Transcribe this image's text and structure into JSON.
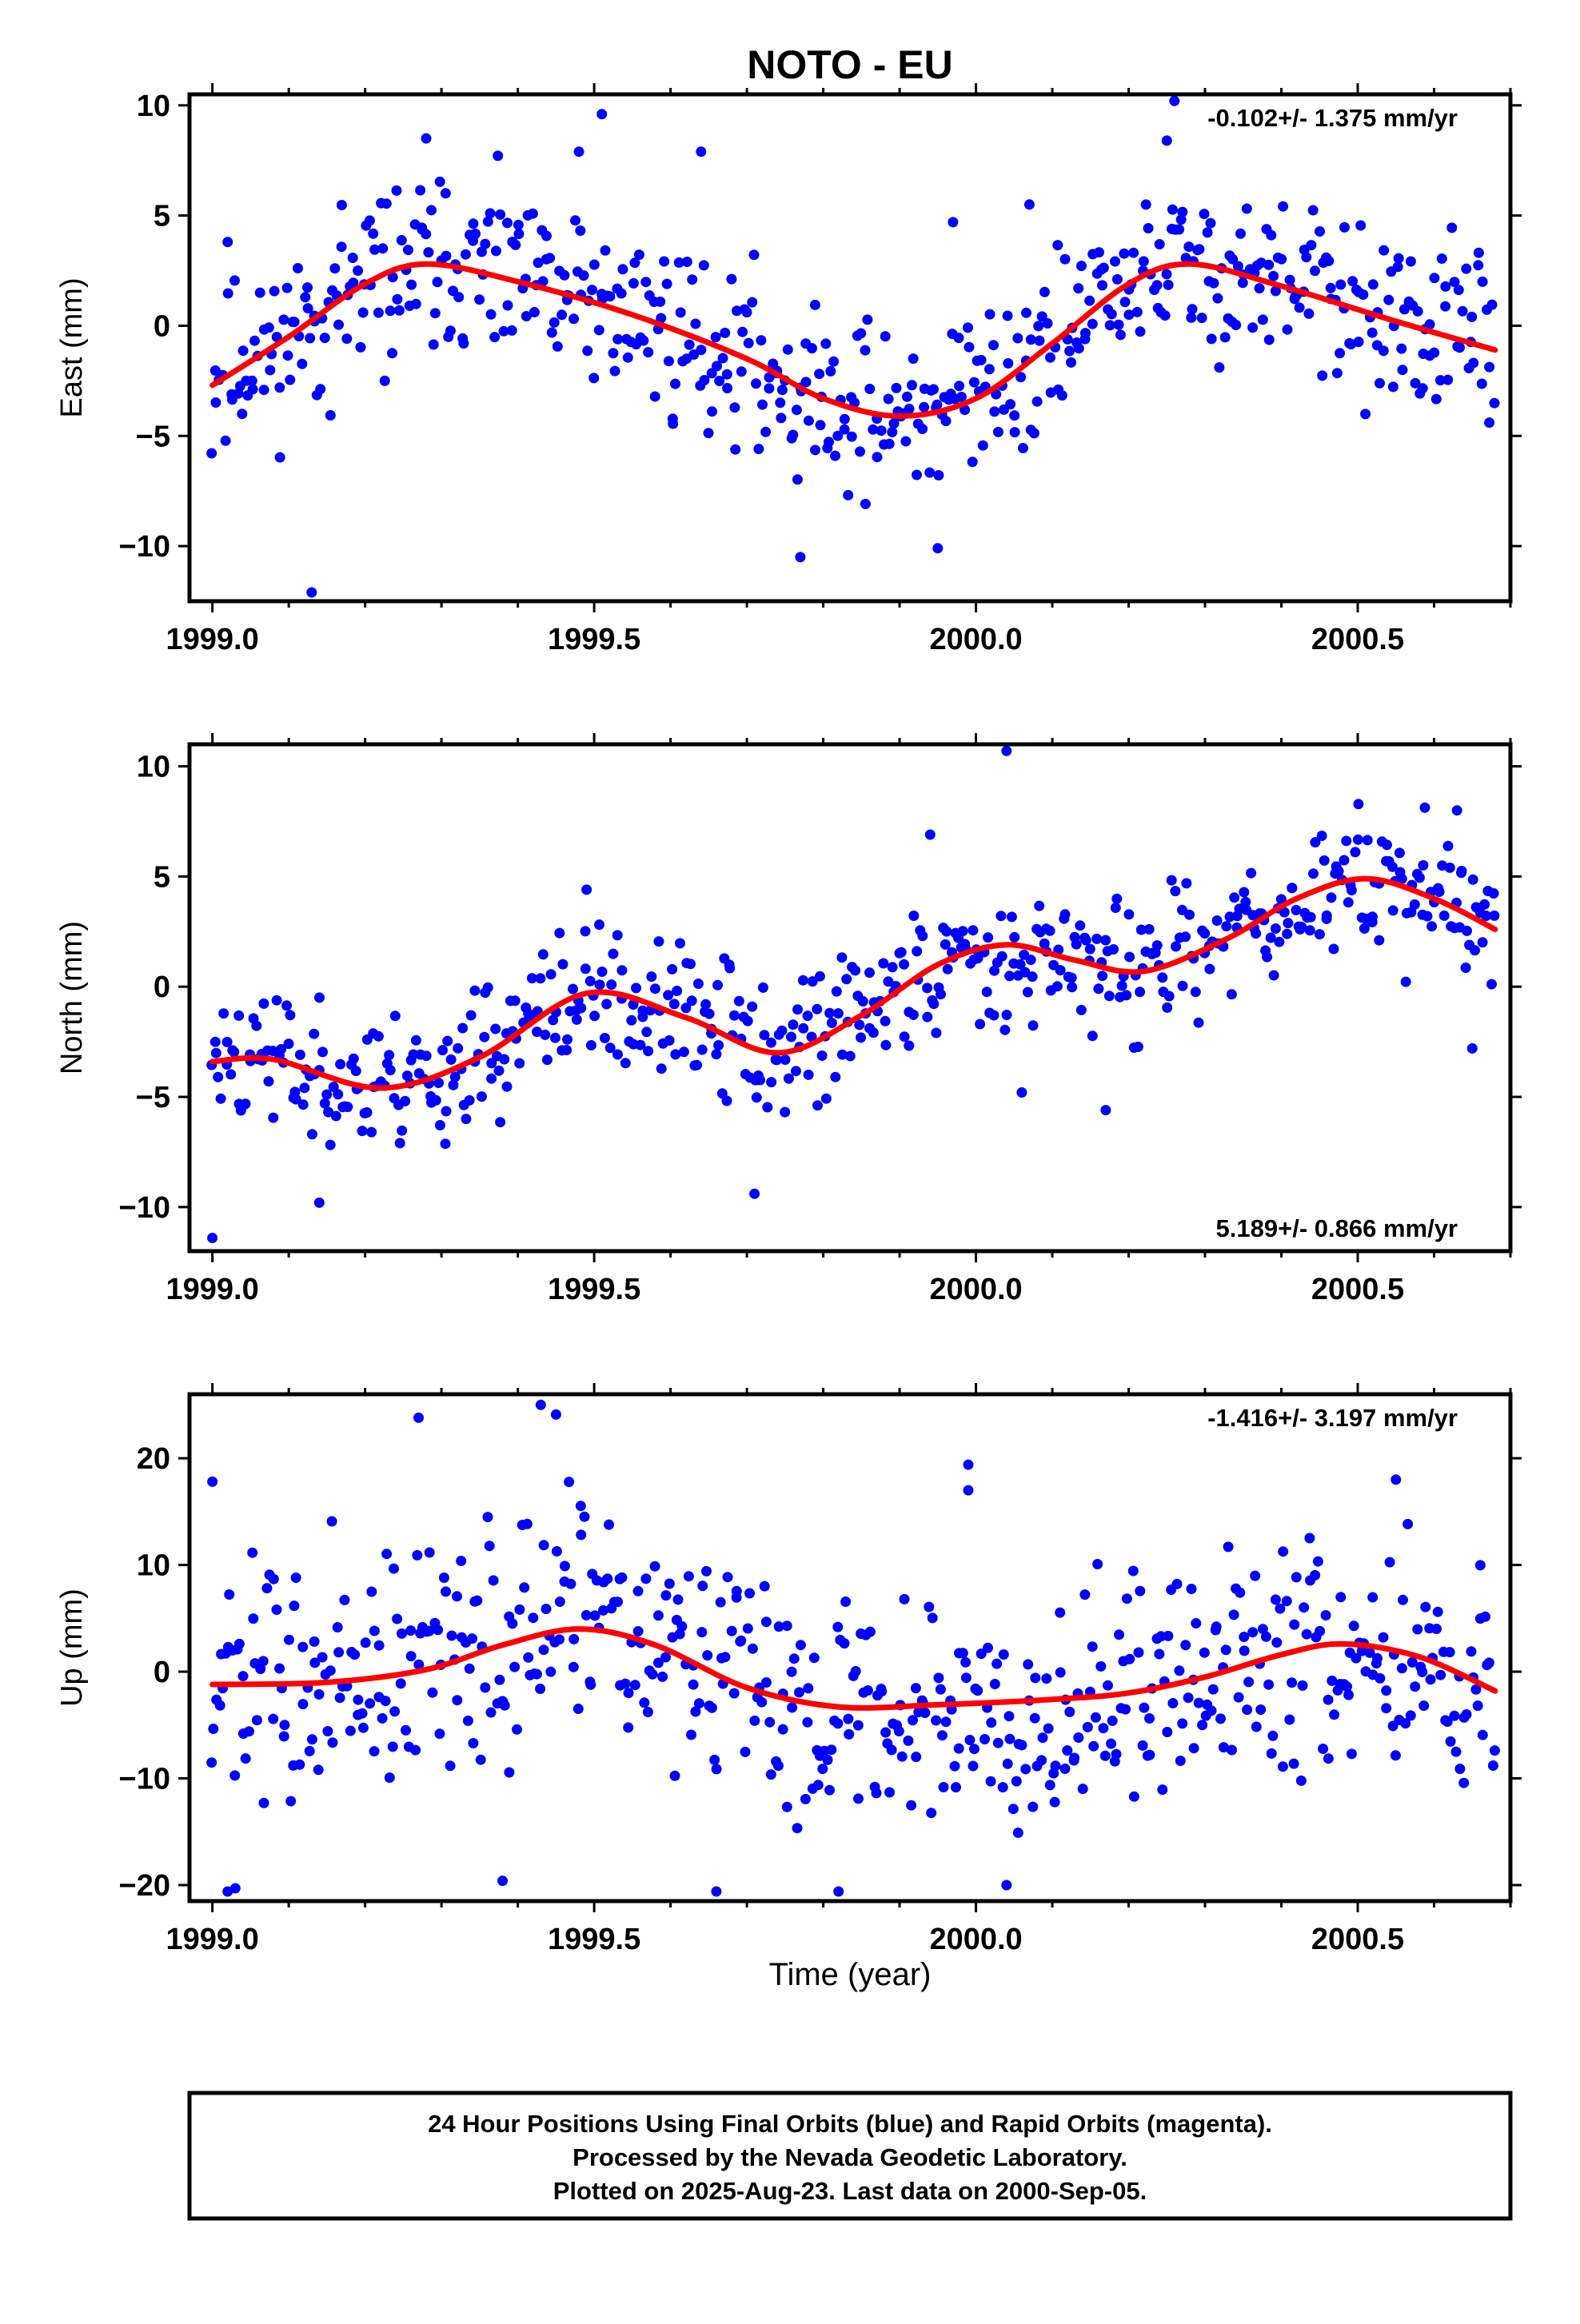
{
  "title": "NOTO - EU",
  "caption": [
    "24 Hour Positions Using Final Orbits (blue) and Rapid Orbits (magenta).",
    "Processed by the Nevada Geodetic Laboratory.",
    "Plotted on 2025-Aug-23. Last data on 2000-Sep-05."
  ],
  "xlabel": "Time (year)",
  "colors": {
    "final_orbits": "#0000ff",
    "fit_curve": "#ff0000",
    "frame": "#000000"
  },
  "chart_data": [
    {
      "type": "scatter",
      "name": "east",
      "ylabel": "East (mm)",
      "rate_text": "-0.102+/- 1.375 mm/yr",
      "xlim": [
        1998.97,
        2000.7
      ],
      "ylim": [
        -12.5,
        10.5
      ],
      "xticks": [
        1999.0,
        1999.5,
        2000.0,
        2000.5
      ],
      "xtick_labels": [
        "1999.0",
        "1999.5",
        "2000.0",
        "2000.5"
      ],
      "yticks": [
        -10,
        -5,
        0,
        5,
        10
      ],
      "ytick_labels": [
        "−10",
        "−5",
        "0",
        "5",
        "10"
      ],
      "fit": {
        "x": [
          1999.0,
          1999.1,
          1999.2,
          1999.28,
          1999.4,
          1999.55,
          1999.7,
          1999.8,
          1999.9,
          2000.0,
          2000.1,
          2000.2,
          2000.28,
          2000.4,
          2000.55,
          2000.68
        ],
        "y": [
          -2.7,
          -0.5,
          1.9,
          2.8,
          2.0,
          0.5,
          -1.5,
          -3.3,
          -4.1,
          -3.3,
          -0.8,
          1.9,
          2.8,
          1.8,
          0.2,
          -1.1
        ]
      },
      "anchors": {
        "x": [
          1999.0,
          1999.1,
          1999.2,
          1999.28,
          1999.4,
          1999.55,
          1999.7,
          1999.8,
          1999.9,
          2000.0,
          2000.1,
          2000.2,
          2000.28,
          2000.4,
          2000.55,
          2000.68
        ],
        "y": [
          -2.7,
          -0.5,
          1.9,
          2.8,
          2.0,
          0.5,
          -1.5,
          -3.3,
          -4.1,
          -3.3,
          -0.8,
          1.9,
          2.8,
          1.8,
          0.2,
          -1.1
        ]
      },
      "spread": 2.5,
      "outliers": [
        [
          1999.13,
          -12.1
        ],
        [
          1999.77,
          -10.5
        ],
        [
          1999.95,
          -10.1
        ],
        [
          1999.51,
          9.6
        ],
        [
          2000.26,
          10.2
        ],
        [
          2000.25,
          8.4
        ],
        [
          1999.28,
          8.5
        ],
        [
          1999.02,
          3.8
        ],
        [
          1999.48,
          7.9
        ],
        [
          1999.64,
          7.9
        ],
        [
          1999.97,
          4.7
        ],
        [
          2000.07,
          5.5
        ]
      ],
      "n_points": 560,
      "seed": 11
    },
    {
      "type": "scatter",
      "name": "north",
      "ylabel": "North (mm)",
      "rate_text": "5.189+/- 0.866 mm/yr",
      "xlim": [
        1998.97,
        2000.7
      ],
      "ylim": [
        -12,
        11
      ],
      "xticks": [
        1999.0,
        1999.5,
        2000.0,
        2000.5
      ],
      "xtick_labels": [
        "1999.0",
        "1999.5",
        "2000.0",
        "2000.5"
      ],
      "yticks": [
        -10,
        -5,
        0,
        5,
        10
      ],
      "ytick_labels": [
        "−10",
        "−5",
        "0",
        "5",
        "10"
      ],
      "fit": {
        "x": [
          1999.0,
          1999.08,
          1999.22,
          1999.35,
          1999.49,
          1999.62,
          1999.74,
          1999.85,
          1999.95,
          2000.04,
          2000.13,
          2000.22,
          2000.33,
          2000.42,
          2000.51,
          2000.6,
          2000.68
        ],
        "y": [
          -3.4,
          -3.3,
          -4.6,
          -3.2,
          -0.3,
          -1.4,
          -3.0,
          -1.3,
          1.0,
          1.9,
          1.2,
          0.7,
          2.2,
          4.0,
          4.9,
          4.0,
          2.6
        ]
      },
      "anchors": {
        "x": [
          1999.0,
          1999.08,
          1999.22,
          1999.35,
          1999.49,
          1999.62,
          1999.74,
          1999.85,
          1999.95,
          2000.04,
          2000.13,
          2000.22,
          2000.33,
          2000.42,
          2000.51,
          2000.6,
          2000.68
        ],
        "y": [
          -3.4,
          -3.3,
          -4.6,
          -3.2,
          -0.3,
          -1.4,
          -3.0,
          -1.3,
          1.0,
          1.9,
          1.2,
          0.7,
          2.2,
          4.0,
          4.9,
          4.0,
          2.6
        ]
      },
      "spread": 2.0,
      "outliers": [
        [
          1999.0,
          -11.4
        ],
        [
          1999.71,
          -9.4
        ],
        [
          1999.14,
          -9.8
        ],
        [
          2000.04,
          10.7
        ],
        [
          2000.63,
          8.0
        ],
        [
          2000.65,
          -2.8
        ],
        [
          2000.17,
          -5.6
        ],
        [
          1999.49,
          4.4
        ],
        [
          1999.94,
          6.9
        ],
        [
          2000.06,
          -4.8
        ]
      ],
      "n_points": 560,
      "seed": 23
    },
    {
      "type": "scatter",
      "name": "up",
      "ylabel": "Up (mm)",
      "rate_text": "-1.416+/- 3.197 mm/yr",
      "xlim": [
        1998.97,
        2000.7
      ],
      "ylim": [
        -21.5,
        26
      ],
      "xticks": [
        1999.0,
        1999.5,
        2000.0,
        2000.5
      ],
      "xtick_labels": [
        "1999.0",
        "1999.5",
        "2000.0",
        "2000.5"
      ],
      "yticks": [
        -20,
        -10,
        0,
        10,
        20
      ],
      "ytick_labels": [
        "−20",
        "−10",
        "0",
        "10",
        "20"
      ],
      "fit": {
        "x": [
          1999.0,
          1999.15,
          1999.28,
          1999.38,
          1999.48,
          1999.58,
          1999.7,
          1999.82,
          1999.95,
          2000.1,
          2000.2,
          2000.3,
          2000.4,
          2000.48,
          2000.58,
          2000.68
        ],
        "y": [
          -1.2,
          -1.0,
          0.2,
          2.5,
          4.0,
          2.5,
          -1.5,
          -3.3,
          -3.1,
          -2.6,
          -2.0,
          -0.5,
          1.6,
          2.6,
          1.4,
          -1.8
        ]
      },
      "anchors": {
        "x": [
          1999.0,
          1999.15,
          1999.28,
          1999.38,
          1999.48,
          1999.58,
          1999.7,
          1999.82,
          1999.95,
          2000.1,
          2000.2,
          2000.3,
          2000.4,
          2000.48,
          2000.58,
          2000.68
        ],
        "y": [
          -1.2,
          -1.0,
          0.2,
          2.5,
          4.0,
          2.5,
          -1.5,
          -3.3,
          -3.1,
          -2.6,
          -2.0,
          -0.5,
          1.6,
          2.6,
          1.4,
          -1.8
        ]
      },
      "spread": 7.0,
      "outliers": [
        [
          1999.0,
          17.8
        ],
        [
          1999.27,
          23.8
        ],
        [
          1999.43,
          25.0
        ],
        [
          1999.45,
          24.1
        ],
        [
          1999.99,
          19.4
        ],
        [
          1999.99,
          17.0
        ],
        [
          1999.02,
          -20.6
        ],
        [
          1999.03,
          -20.3
        ],
        [
          1999.66,
          -20.6
        ],
        [
          1999.82,
          -20.6
        ],
        [
          2000.04,
          -20.0
        ],
        [
          1999.38,
          -19.6
        ],
        [
          2000.55,
          18.0
        ]
      ],
      "n_points": 560,
      "seed": 37
    }
  ]
}
